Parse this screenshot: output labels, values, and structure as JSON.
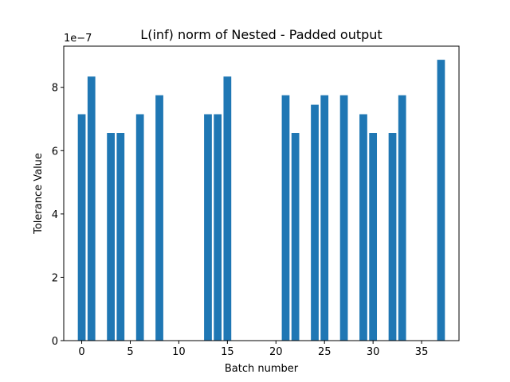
{
  "chart_data": {
    "type": "bar",
    "title": "L(inf) norm of Nested - Padded output",
    "xlabel": "Batch number",
    "ylabel": "Tolerance Value",
    "y_offset_label": "1e−7",
    "scale_factor": 1e-07,
    "x": [
      0,
      1,
      3,
      4,
      6,
      8,
      13,
      14,
      15,
      21,
      22,
      24,
      25,
      27,
      29,
      30,
      32,
      33,
      37
    ],
    "values": [
      7.15e-07,
      8.34e-07,
      6.56e-07,
      6.56e-07,
      7.15e-07,
      7.75e-07,
      7.15e-07,
      7.15e-07,
      8.34e-07,
      7.75e-07,
      6.56e-07,
      7.45e-07,
      7.75e-07,
      7.75e-07,
      7.15e-07,
      6.56e-07,
      6.56e-07,
      7.75e-07,
      8.87e-07
    ],
    "xlim": [
      -1.85,
      38.85
    ],
    "ylim": [
      0,
      9.3e-07
    ],
    "x_ticks": [
      0,
      5,
      10,
      15,
      20,
      25,
      30,
      35
    ],
    "x_tick_labels": [
      "0",
      "5",
      "10",
      "15",
      "20",
      "25",
      "30",
      "35"
    ],
    "y_ticks": [
      0,
      2e-07,
      4e-07,
      6e-07,
      8e-07
    ],
    "y_tick_labels": [
      "0",
      "2",
      "4",
      "6",
      "8"
    ],
    "bar_color": "#1f77b4",
    "grid": false,
    "legend": "none"
  }
}
